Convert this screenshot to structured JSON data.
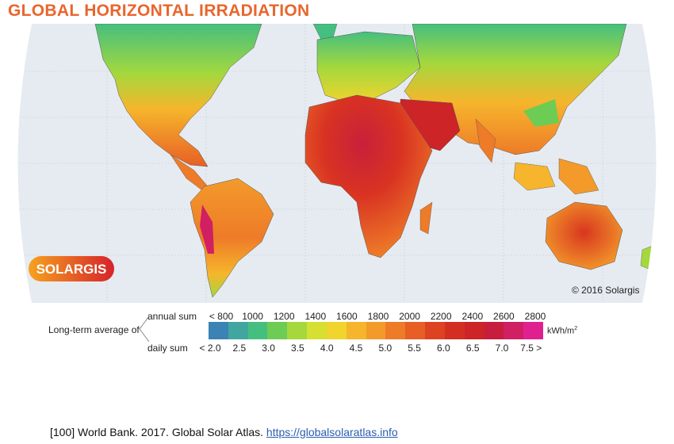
{
  "title": "GLOBAL HORIZONTAL IRRADIATION",
  "brand": "SOLARGIS",
  "copyright": "© 2016 Solargis",
  "legend": {
    "prefix": "Long-term average of",
    "annual_label": "annual sum",
    "daily_label": "daily sum",
    "unit_main": "kWh/m",
    "unit_sup": "2",
    "annual_ticks": [
      "< 800",
      "1000",
      "1200",
      "1400",
      "1600",
      "1800",
      "2000",
      "2200",
      "2400",
      "2600",
      "2800"
    ],
    "daily_ticks": [
      "< 2.0",
      "2.5",
      "3.0",
      "3.5",
      "4.0",
      "4.5",
      "5.0",
      "5.5",
      "6.0",
      "6.5",
      "7.0",
      "7.5 >"
    ],
    "colors": [
      "#3b83b5",
      "#41a6a0",
      "#45bf7f",
      "#6dcc53",
      "#a4d83d",
      "#d5e032",
      "#f1d42d",
      "#f6b52c",
      "#f39a2b",
      "#ee7b28",
      "#e75f25",
      "#dd4322",
      "#d22f22",
      "#cc2427",
      "#c81e3d",
      "#d01f63",
      "#e0208f"
    ]
  },
  "reference": {
    "text": "[100] World Bank. 2017. Global Solar Atlas. ",
    "link": "https://globalsolaratlas.info"
  }
}
